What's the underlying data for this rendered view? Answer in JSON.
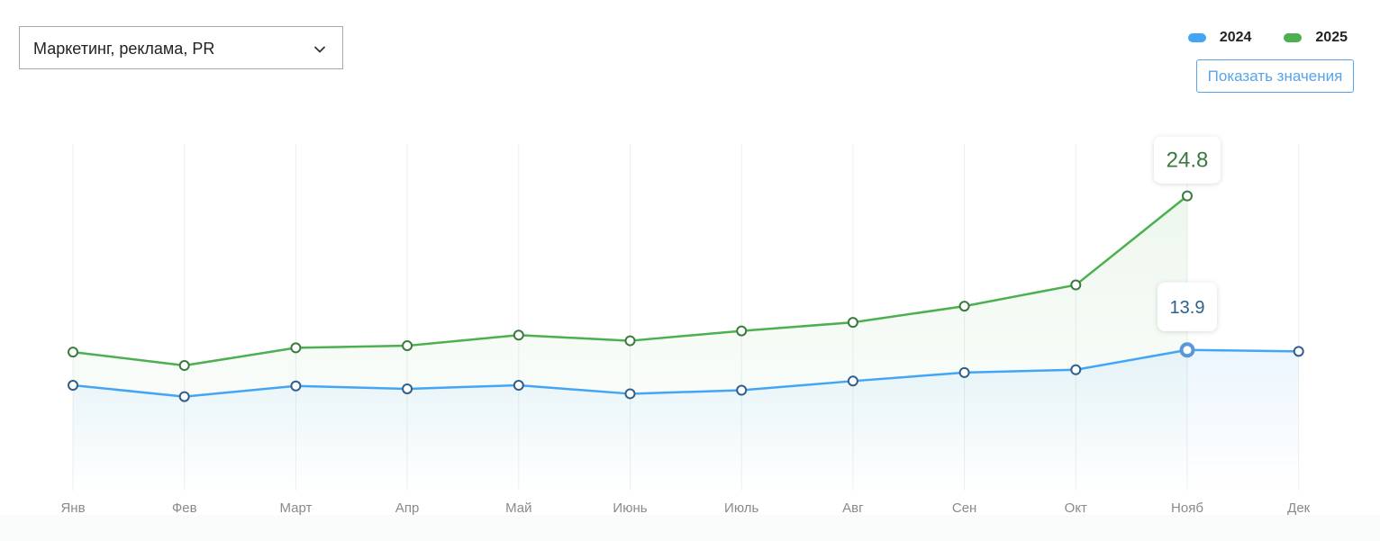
{
  "filter": {
    "selected": "Маркетинг, реклама, PR"
  },
  "show_values_label": "Показать значения",
  "colors": {
    "series_2024": "#42a5f5",
    "series_2025": "#4caf50",
    "marker_2024": "#2f5f8a",
    "marker_2025": "#3b7a3e",
    "tooltip_2024_text": "#2f5f8a",
    "tooltip_2025_text": "#3b7a3e"
  },
  "chart_data": {
    "type": "line",
    "categories": [
      "Янв",
      "Фев",
      "Март",
      "Апр",
      "Май",
      "Июнь",
      "Июль",
      "Авг",
      "Сен",
      "Окт",
      "Нояб",
      "Дек"
    ],
    "series": [
      {
        "name": "2024",
        "values": [
          11.4,
          10.6,
          11.35,
          11.15,
          11.4,
          10.8,
          11.05,
          11.7,
          12.3,
          12.5,
          13.9,
          13.8
        ]
      },
      {
        "name": "2025",
        "values": [
          13.75,
          12.8,
          14.05,
          14.2,
          14.95,
          14.55,
          15.25,
          15.85,
          17.0,
          18.5,
          24.8,
          null
        ]
      }
    ],
    "highlighted_category": "Нояб",
    "tooltips": [
      {
        "series": "2025",
        "category": "Нояб",
        "text": "24.8"
      },
      {
        "series": "2024",
        "category": "Нояб",
        "text": "13.9"
      }
    ],
    "ylim": [
      0,
      20
    ],
    "grid": "vertical",
    "legend_position": "top-right",
    "xlabel": "",
    "ylabel": ""
  }
}
